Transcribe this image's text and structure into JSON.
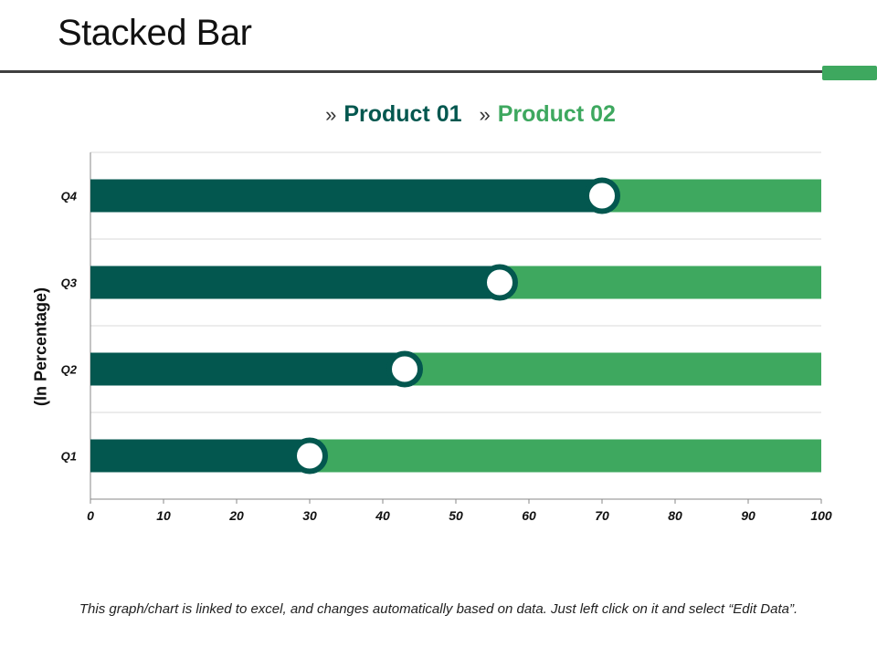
{
  "page": {
    "title": "Stacked Bar",
    "footnote": "This graph/chart is linked to excel, and changes automatically based on data. Just left click on it and select “Edit Data”."
  },
  "colors": {
    "product_01": "#03574f",
    "product_02": "#3ea85f",
    "accent": "#3ea85f",
    "gridline": "#d9d9d9",
    "axis": "#888888"
  },
  "legend": {
    "marker": "»",
    "items": [
      "Product 01",
      "Product 02"
    ]
  },
  "chart_data": {
    "type": "bar",
    "orientation": "horizontal",
    "stacked": true,
    "categories": [
      "Q1",
      "Q2",
      "Q3",
      "Q4"
    ],
    "series": [
      {
        "name": "Product 01",
        "values": [
          30,
          43,
          56,
          70
        ]
      },
      {
        "name": "Product 02",
        "values": [
          70,
          57,
          44,
          30
        ]
      }
    ],
    "xlim": [
      0,
      100
    ],
    "xticks": [
      "0",
      "10",
      "20",
      "30",
      "40",
      "50",
      "60",
      "70",
      "80",
      "90",
      "100"
    ],
    "ylabel": "(In Percentage)",
    "xlabel": "",
    "grid": true,
    "legend_position": "top",
    "markers": "circle at series boundary"
  }
}
